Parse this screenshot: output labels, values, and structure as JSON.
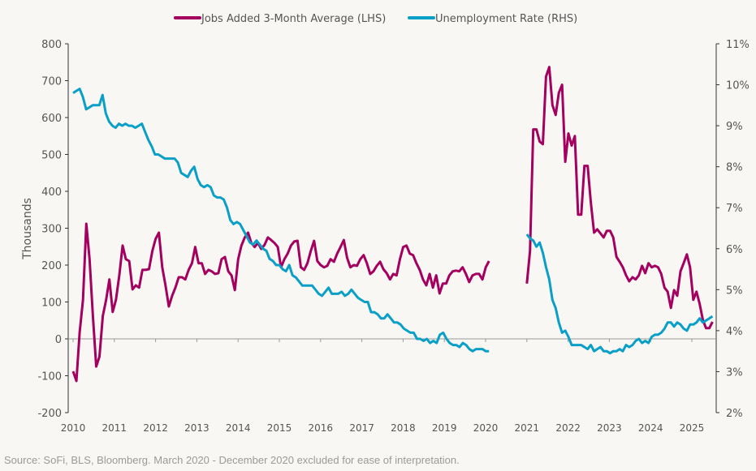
{
  "chart_data": {
    "type": "line",
    "legend": {
      "placement": "top",
      "entries": [
        "Jobs Added 3-Month Average (LHS)",
        "Unemployment Rate (RHS)"
      ]
    },
    "ylabel": "Thousands",
    "ylim_left": [
      -200,
      800
    ],
    "yticks_left": [
      "800",
      "700",
      "600",
      "500",
      "400",
      "300",
      "200",
      "100",
      "0",
      "-100",
      "-200"
    ],
    "ylim_right": [
      2,
      11
    ],
    "yticks_right": [
      "11%",
      "10%",
      "9%",
      "8%",
      "7%",
      "6%",
      "5%",
      "4%",
      "3%",
      "2%"
    ],
    "xlim": [
      2010,
      2025.75
    ],
    "xticks": [
      "2010",
      "2011",
      "2012",
      "2013",
      "2014",
      "2015",
      "2016",
      "2017",
      "2018",
      "2019",
      "2020",
      "2021",
      "2022",
      "2023",
      "2024",
      "2025"
    ],
    "grid": false,
    "colors": {
      "jobs": "#a4005f",
      "unemployment": "#0a9fc6"
    },
    "series": [
      {
        "name": "Jobs Added 3-Month Average (LHS)",
        "axis": "left",
        "segments": [
          {
            "start": "2010-01",
            "end": "2020-02",
            "values": [
              -88,
              -114,
              18,
              106,
              312,
              216,
              62,
              -75,
              -48,
              62,
              106,
              161,
              73,
              106,
              172,
              253,
              216,
              211,
              134,
              145,
              139,
              187,
              187,
              189,
              238,
              271,
              288,
              194,
              145,
              88,
              117,
              139,
              167,
              167,
              161,
              187,
              205,
              249,
              205,
              205,
              176,
              187,
              183,
              176,
              178,
              216,
              222,
              183,
              172,
              132,
              216,
              253,
              275,
              288,
              260,
              249,
              260,
              244,
              255,
              275,
              268,
              260,
              249,
              194,
              216,
              231,
              253,
              264,
              266,
              194,
              187,
              205,
              238,
              266,
              211,
              200,
              194,
              198,
              216,
              209,
              231,
              249,
              268,
              220,
              194,
              200,
              198,
              216,
              227,
              205,
              176,
              183,
              198,
              209,
              189,
              178,
              161,
              176,
              172,
              216,
              249,
              253,
              231,
              227,
              205,
              187,
              161,
              145,
              176,
              139,
              172,
              123,
              150,
              150,
              172,
              183,
              185,
              183,
              194,
              176,
              154,
              172,
              176,
              176,
              161,
              194,
              211
            ]
          },
          {
            "start": "2021-01",
            "end": "2025-07",
            "values": [
              150,
              238,
              568,
              568,
              535,
              528,
              711,
              737,
              634,
              607,
              667,
              689,
              480,
              557,
              524,
              550,
              337,
              337,
              469,
              469,
              370,
              288,
              297,
              286,
              275,
              293,
              293,
              275,
              222,
              209,
              194,
              172,
              156,
              167,
              161,
              172,
              198,
              178,
              205,
              194,
              198,
              194,
              176,
              139,
              128,
              84,
              132,
              117,
              183,
              205,
              229,
              194,
              106,
              128,
              95,
              51,
              29,
              29,
              46
            ]
          }
        ]
      },
      {
        "name": "Unemployment Rate (RHS)",
        "axis": "right",
        "segments": [
          {
            "start": "2010-01",
            "end": "2020-02",
            "values": [
              9.8,
              9.85,
              9.9,
              9.7,
              9.4,
              9.45,
              9.5,
              9.5,
              9.5,
              9.75,
              9.3,
              9.1,
              9.0,
              8.95,
              9.05,
              9.0,
              9.05,
              9.0,
              9.0,
              8.95,
              9.0,
              9.05,
              8.85,
              8.65,
              8.5,
              8.3,
              8.3,
              8.25,
              8.2,
              8.2,
              8.2,
              8.2,
              8.1,
              7.85,
              7.8,
              7.75,
              7.9,
              8.0,
              7.7,
              7.55,
              7.5,
              7.55,
              7.5,
              7.3,
              7.25,
              7.25,
              7.2,
              7.0,
              6.7,
              6.6,
              6.65,
              6.6,
              6.45,
              6.3,
              6.15,
              6.1,
              6.2,
              6.1,
              6.0,
              5.95,
              5.75,
              5.7,
              5.6,
              5.6,
              5.5,
              5.45,
              5.6,
              5.35,
              5.3,
              5.2,
              5.1,
              5.1,
              5.1,
              5.1,
              5.0,
              4.9,
              4.85,
              4.95,
              5.05,
              4.9,
              4.9,
              4.9,
              4.95,
              4.85,
              4.9,
              5.0,
              4.9,
              4.8,
              4.75,
              4.7,
              4.7,
              4.45,
              4.45,
              4.4,
              4.3,
              4.3,
              4.4,
              4.3,
              4.2,
              4.2,
              4.15,
              4.05,
              4.0,
              3.95,
              3.95,
              3.8,
              3.8,
              3.75,
              3.8,
              3.7,
              3.75,
              3.7,
              3.9,
              3.95,
              3.8,
              3.7,
              3.65,
              3.65,
              3.6,
              3.7,
              3.65,
              3.55,
              3.5,
              3.55,
              3.55,
              3.55,
              3.5,
              3.5
            ]
          },
          {
            "start": "2021-01",
            "end": "2025-07",
            "values": [
              6.35,
              6.25,
              6.2,
              6.05,
              6.15,
              5.9,
              5.55,
              5.25,
              4.75,
              4.55,
              4.2,
              3.95,
              4.0,
              3.85,
              3.65,
              3.65,
              3.65,
              3.65,
              3.6,
              3.55,
              3.65,
              3.5,
              3.55,
              3.6,
              3.5,
              3.5,
              3.45,
              3.5,
              3.5,
              3.55,
              3.5,
              3.65,
              3.6,
              3.65,
              3.75,
              3.8,
              3.7,
              3.75,
              3.7,
              3.85,
              3.9,
              3.9,
              3.95,
              4.05,
              4.2,
              4.2,
              4.1,
              4.2,
              4.15,
              4.05,
              4.0,
              4.15,
              4.15,
              4.2,
              4.3,
              4.2,
              4.25,
              4.3,
              4.35
            ]
          }
        ]
      }
    ]
  },
  "source": "Source: SoFi, BLS, Bloomberg. March 2020 - December 2020 excluded for ease of interpretation."
}
